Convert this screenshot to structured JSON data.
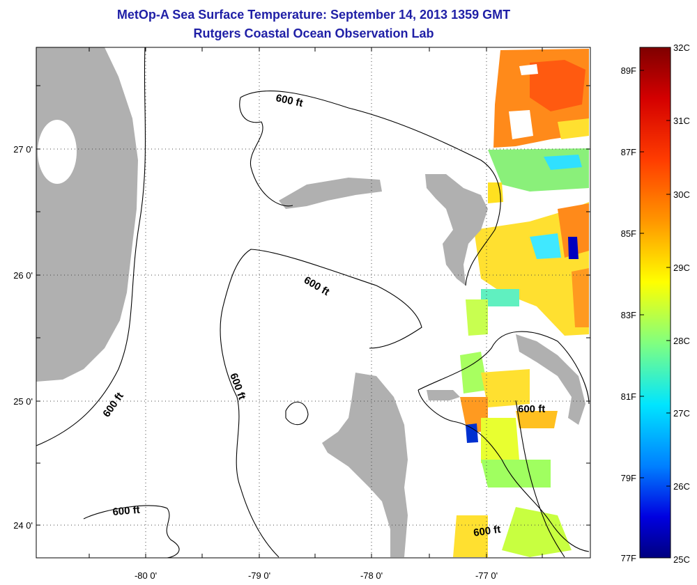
{
  "title_line1": "MetOp-A Sea Surface Temperature:  September 14, 2013 1359 GMT",
  "title_line2": "Rutgers Coastal Ocean Observation Lab",
  "map": {
    "lon_labels": [
      "-80 0'",
      "-79 0'",
      "-78 0'",
      "-77 0'"
    ],
    "lat_labels": [
      "27 0'",
      "26 0'",
      "25 0'",
      "24 0'"
    ],
    "contour_label": "600 ft",
    "colors": {
      "land": "#b0b0b0",
      "frame": "#000000"
    }
  },
  "colorbar": {
    "celsius_labels": [
      "32C",
      "31C",
      "30C",
      "29C",
      "28C",
      "27C",
      "26C",
      "25C"
    ],
    "fahrenheit_labels": [
      "89F",
      "87F",
      "85F",
      "83F",
      "81F",
      "79F",
      "77F"
    ],
    "colors": [
      "#7f0000",
      "#ff0000",
      "#ff8000",
      "#ffff00",
      "#80ff80",
      "#00ffff",
      "#0080ff",
      "#0000ff",
      "#00007f"
    ]
  }
}
